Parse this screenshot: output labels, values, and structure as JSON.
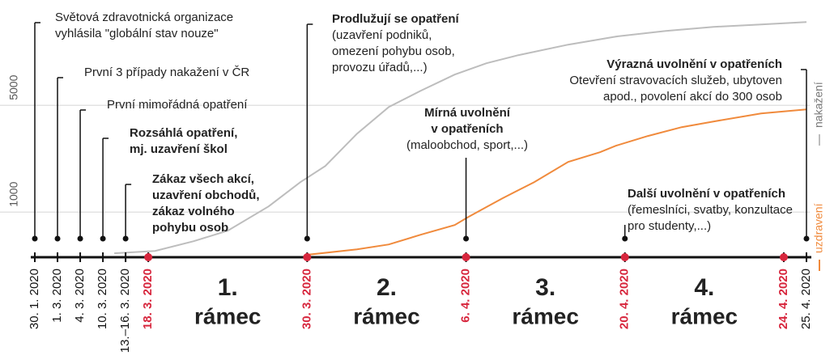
{
  "chart_data": {
    "type": "line",
    "series": [
      {
        "name": "nakažení",
        "color": "#bdbdbd",
        "x": [
          3.5,
          5.3,
          7.0,
          8.5,
          10.3,
          11.7,
          12.8,
          14.2,
          15.6,
          17.0,
          18.5,
          19.9,
          21.3,
          23.5,
          25.6,
          27.8,
          29.9,
          32.0,
          34.0
        ],
        "values": [
          -545,
          -455,
          -91,
          303,
          1212,
          2121,
          2727,
          3939,
          4939,
          5545,
          6152,
          6576,
          6879,
          7273,
          7576,
          7788,
          7939,
          8030,
          8121
        ]
      },
      {
        "name": "uzdravení",
        "color": "#f08a3c",
        "x": [
          12.0,
          14.2,
          15.6,
          17.0,
          18.5,
          19.1,
          20.6,
          22.0,
          23.5,
          24.9,
          25.6,
          27.0,
          28.5,
          29.9,
          32.0,
          34.0
        ],
        "values": [
          -600,
          -394,
          -212,
          152,
          515,
          818,
          1515,
          2121,
          2879,
          3242,
          3485,
          3848,
          4182,
          4394,
          4697,
          4848
        ]
      }
    ],
    "xlim": [
      0,
      34
    ],
    "ylim": [
      -600,
      8340
    ],
    "yticks": [
      1000,
      5000
    ],
    "grid": true,
    "events": [
      {
        "date": "30. 1. 2020",
        "x": 0,
        "color": "#111111",
        "text": [
          "Světová zdravotnická organizace",
          "vyhlásila \"globální stav nouze\""
        ]
      },
      {
        "date": "1. 3. 2020",
        "x": 1,
        "color": "#111111",
        "text": [
          "První 3 případy nakažení v ČR"
        ]
      },
      {
        "date": "4. 3. 2020",
        "x": 2,
        "color": "#111111",
        "text": [
          "První mimořádná opatření"
        ]
      },
      {
        "date": "10. 3. 2020",
        "x": 3,
        "color": "#111111",
        "title": [
          "Rozsáhlá opatření,",
          "mj. uzavření škol"
        ]
      },
      {
        "date": "13.–16. 3. 2020",
        "x": 4,
        "color": "#111111",
        "title": [
          "Zákaz všech akcí,",
          "uzavření obchodů,",
          "zákaz volného",
          "pohybu osob"
        ]
      },
      {
        "date": "18. 3. 2020",
        "x": 5,
        "color": "#d7263d"
      },
      {
        "date": "30. 3. 2020",
        "x": 12,
        "color": "#d7263d",
        "title": [
          "Prodlužují se opatření"
        ],
        "text": [
          "(uzavření podniků,",
          "omezení pohybu osob,",
          "provozu úřadů,...)"
        ]
      },
      {
        "date": "6. 4. 2020",
        "x": 19,
        "color": "#d7263d",
        "title": [
          "Mírná uvolnění",
          "v opatřeních"
        ],
        "text": [
          "(maloobchod, sport,...)"
        ]
      },
      {
        "date": "20. 4. 2020",
        "x": 26,
        "color": "#d7263d",
        "title": [
          "Další uvolnění v opatřeních"
        ],
        "text": [
          "(řemeslníci, svatby, konzultace",
          "pro studenty,...)"
        ]
      },
      {
        "date": "24. 4. 2020",
        "x": 33,
        "color": "#d7263d"
      },
      {
        "date": "25. 4. 2020",
        "x": 34,
        "color": "#111111",
        "title": [
          "Výrazná uvolnění v opatřeních"
        ],
        "text": [
          "Otevření stravovacích služeb, ubytoven",
          "apod., povolení akcí do 300 osob"
        ]
      }
    ],
    "frames": [
      "1.",
      "2.",
      "3.",
      "4."
    ],
    "frame_label": "rámec"
  }
}
